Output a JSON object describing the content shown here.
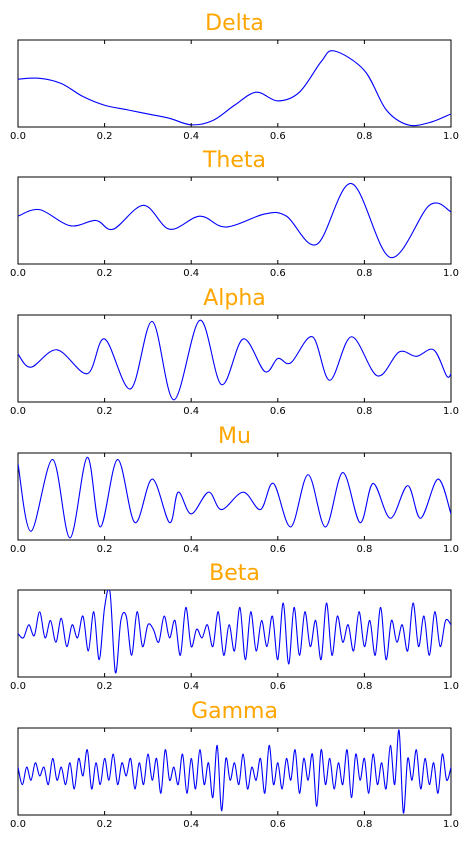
{
  "chart_data": [
    {
      "type": "line",
      "title": "Delta",
      "color": "#0000ff",
      "xlim": [
        0,
        1
      ],
      "ylim": [
        -1,
        1
      ],
      "xticks": [
        {
          "value": 0,
          "label": "0.0"
        },
        {
          "value": 0.2,
          "label": "0.2"
        },
        {
          "value": 0.4,
          "label": "0.4"
        },
        {
          "value": 0.6,
          "label": "0.6"
        },
        {
          "value": 0.8,
          "label": "0.8"
        },
        {
          "value": 1,
          "label": "1.0"
        }
      ],
      "x": [
        0,
        0.05,
        0.1,
        0.15,
        0.2,
        0.25,
        0.3,
        0.35,
        0.4,
        0.45,
        0.5,
        0.55,
        0.6,
        0.65,
        0.7,
        0.73,
        0.8,
        0.85,
        0.9,
        0.95,
        1
      ],
      "values": [
        0.1,
        0.12,
        0.0,
        -0.3,
        -0.5,
        -0.6,
        -0.7,
        -0.8,
        -0.95,
        -0.85,
        -0.5,
        -0.2,
        -0.4,
        -0.2,
        0.5,
        0.75,
        0.3,
        -0.6,
        -0.95,
        -0.9,
        -0.7
      ]
    },
    {
      "type": "line",
      "title": "Theta",
      "color": "#0000ff",
      "xlim": [
        0,
        1
      ],
      "ylim": [
        -1,
        1
      ],
      "xticks": [
        {
          "value": 0,
          "label": "0.0"
        },
        {
          "value": 0.2,
          "label": "0.2"
        },
        {
          "value": 0.4,
          "label": "0.4"
        },
        {
          "value": 0.6,
          "label": "0.6"
        },
        {
          "value": 0.8,
          "label": "0.8"
        },
        {
          "value": 1,
          "label": "1.0"
        }
      ],
      "x": [
        0,
        0.05,
        0.12,
        0.18,
        0.22,
        0.29,
        0.35,
        0.42,
        0.48,
        0.57,
        0.62,
        0.69,
        0.77,
        0.86,
        0.95,
        1
      ],
      "values": [
        0.1,
        0.25,
        -0.12,
        0.0,
        -0.2,
        0.35,
        -0.2,
        0.1,
        -0.15,
        0.15,
        0.1,
        -0.55,
        0.85,
        -0.85,
        0.35,
        0.2
      ]
    },
    {
      "type": "line",
      "title": "Alpha",
      "color": "#0000ff",
      "xlim": [
        0,
        1
      ],
      "ylim": [
        -1,
        1
      ],
      "xticks": [
        {
          "value": 0,
          "label": "0.0"
        },
        {
          "value": 0.2,
          "label": "0.2"
        },
        {
          "value": 0.4,
          "label": "0.4"
        },
        {
          "value": 0.6,
          "label": "0.6"
        },
        {
          "value": 0.8,
          "label": "0.8"
        },
        {
          "value": 1,
          "label": "1.0"
        }
      ],
      "x": [
        0,
        0.03,
        0.09,
        0.16,
        0.2,
        0.26,
        0.31,
        0.36,
        0.42,
        0.47,
        0.52,
        0.57,
        0.6,
        0.63,
        0.68,
        0.72,
        0.77,
        0.83,
        0.88,
        0.92,
        0.96,
        0.99,
        1
      ],
      "values": [
        0.1,
        -0.2,
        0.2,
        -0.35,
        0.45,
        -0.7,
        0.85,
        -0.95,
        0.88,
        -0.6,
        0.45,
        -0.3,
        0.0,
        -0.1,
        0.5,
        -0.5,
        0.5,
        -0.4,
        0.15,
        0.05,
        0.2,
        -0.4,
        -0.35
      ]
    },
    {
      "type": "line",
      "title": "Mu",
      "color": "#0000ff",
      "xlim": [
        0,
        1
      ],
      "ylim": [
        -1,
        1
      ],
      "xticks": [
        {
          "value": 0,
          "label": "0.0"
        },
        {
          "value": 0.2,
          "label": "0.2"
        },
        {
          "value": 0.4,
          "label": "0.4"
        },
        {
          "value": 0.6,
          "label": "0.6"
        },
        {
          "value": 0.8,
          "label": "0.8"
        },
        {
          "value": 1,
          "label": "1.0"
        }
      ],
      "x": [
        0,
        0.03,
        0.08,
        0.12,
        0.16,
        0.19,
        0.23,
        0.27,
        0.31,
        0.35,
        0.37,
        0.4,
        0.44,
        0.47,
        0.52,
        0.56,
        0.59,
        0.63,
        0.67,
        0.71,
        0.75,
        0.79,
        0.82,
        0.86,
        0.9,
        0.93,
        0.97,
        1
      ],
      "values": [
        0.75,
        -0.8,
        0.85,
        -0.95,
        0.9,
        -0.7,
        0.85,
        -0.6,
        0.4,
        -0.6,
        0.1,
        -0.4,
        0.1,
        -0.3,
        0.1,
        -0.3,
        0.3,
        -0.7,
        0.5,
        -0.7,
        0.55,
        -0.6,
        0.3,
        -0.5,
        0.25,
        -0.5,
        0.4,
        -0.4
      ]
    },
    {
      "type": "line",
      "title": "Beta",
      "color": "#0000ff",
      "xlim": [
        0,
        1
      ],
      "ylim": [
        -1,
        1
      ],
      "xticks": [
        {
          "value": 0,
          "label": "0.0"
        },
        {
          "value": 0.2,
          "label": "0.2"
        },
        {
          "value": 0.4,
          "label": "0.4"
        },
        {
          "value": 0.6,
          "label": "0.6"
        },
        {
          "value": 0.8,
          "label": "0.8"
        },
        {
          "value": 1,
          "label": "1.0"
        }
      ],
      "x": [
        0,
        0.0125,
        0.025,
        0.0375,
        0.05,
        0.0625,
        0.075,
        0.0875,
        0.1,
        0.1125,
        0.125,
        0.1375,
        0.15,
        0.1625,
        0.175,
        0.1875,
        0.2,
        0.2125,
        0.225,
        0.2375,
        0.25,
        0.2625,
        0.275,
        0.2875,
        0.3,
        0.3125,
        0.325,
        0.3375,
        0.35,
        0.3625,
        0.375,
        0.3875,
        0.4,
        0.4125,
        0.425,
        0.4375,
        0.45,
        0.4625,
        0.475,
        0.4875,
        0.5,
        0.5125,
        0.525,
        0.5375,
        0.55,
        0.5625,
        0.575,
        0.5875,
        0.6,
        0.6125,
        0.625,
        0.6375,
        0.65,
        0.6625,
        0.675,
        0.6875,
        0.7,
        0.7125,
        0.725,
        0.7375,
        0.75,
        0.7625,
        0.775,
        0.7875,
        0.8,
        0.8125,
        0.825,
        0.8375,
        0.85,
        0.8625,
        0.875,
        0.8875,
        0.9,
        0.9125,
        0.925,
        0.9375,
        0.95,
        0.9625,
        0.975,
        0.9875,
        1
      ],
      "values": [
        0.0,
        -0.1,
        0.2,
        -0.05,
        0.5,
        -0.1,
        0.3,
        -0.2,
        0.35,
        -0.3,
        0.2,
        -0.1,
        0.4,
        -0.4,
        0.5,
        -0.6,
        0.6,
        0.95,
        -0.9,
        0.3,
        0.4,
        -0.5,
        0.5,
        -0.3,
        0.2,
        0.1,
        -0.2,
        0.4,
        -0.1,
        0.3,
        -0.5,
        0.6,
        -0.3,
        0.1,
        -0.1,
        0.2,
        -0.3,
        0.5,
        -0.5,
        0.2,
        -0.4,
        0.6,
        -0.6,
        0.5,
        -0.4,
        0.3,
        -0.3,
        0.4,
        -0.6,
        0.7,
        -0.7,
        0.6,
        -0.5,
        0.5,
        -0.3,
        0.3,
        -0.6,
        0.7,
        -0.5,
        0.4,
        -0.2,
        0.2,
        -0.4,
        0.5,
        -0.3,
        0.3,
        -0.5,
        0.6,
        -0.6,
        0.3,
        -0.2,
        0.2,
        -0.4,
        0.7,
        -0.3,
        0.4,
        -0.5,
        0.5,
        -0.3,
        0.3,
        0.2
      ]
    },
    {
      "type": "line",
      "title": "Gamma",
      "color": "#0000ff",
      "xlim": [
        0,
        1
      ],
      "ylim": [
        -1,
        1
      ],
      "xticks": [
        {
          "value": 0,
          "label": "0.0"
        },
        {
          "value": 0.2,
          "label": "0.2"
        },
        {
          "value": 0.4,
          "label": "0.4"
        },
        {
          "value": 0.6,
          "label": "0.6"
        },
        {
          "value": 0.8,
          "label": "0.8"
        },
        {
          "value": 1,
          "label": "1.0"
        }
      ],
      "x": [
        0,
        0.01,
        0.02,
        0.03,
        0.04,
        0.05,
        0.06,
        0.07,
        0.08,
        0.09,
        0.1,
        0.11,
        0.12,
        0.13,
        0.14,
        0.15,
        0.16,
        0.17,
        0.18,
        0.19,
        0.2,
        0.21,
        0.22,
        0.23,
        0.24,
        0.25,
        0.26,
        0.27,
        0.28,
        0.29,
        0.3,
        0.31,
        0.32,
        0.33,
        0.34,
        0.35,
        0.36,
        0.37,
        0.38,
        0.39,
        0.4,
        0.41,
        0.42,
        0.43,
        0.44,
        0.45,
        0.46,
        0.47,
        0.48,
        0.49,
        0.5,
        0.51,
        0.52,
        0.53,
        0.54,
        0.55,
        0.56,
        0.57,
        0.58,
        0.59,
        0.6,
        0.61,
        0.62,
        0.63,
        0.64,
        0.65,
        0.66,
        0.67,
        0.68,
        0.69,
        0.7,
        0.71,
        0.72,
        0.73,
        0.74,
        0.75,
        0.76,
        0.77,
        0.78,
        0.79,
        0.8,
        0.81,
        0.82,
        0.83,
        0.84,
        0.85,
        0.86,
        0.87,
        0.88,
        0.89,
        0.9,
        0.91,
        0.92,
        0.93,
        0.94,
        0.95,
        0.96,
        0.97,
        0.98,
        0.99,
        1
      ],
      "values": [
        0.1,
        -0.3,
        0.1,
        -0.2,
        0.2,
        -0.1,
        0.1,
        -0.3,
        0.3,
        -0.2,
        0.1,
        -0.3,
        0.2,
        -0.4,
        0.3,
        -0.1,
        0.5,
        -0.4,
        0.2,
        -0.3,
        0.3,
        -0.2,
        0.4,
        -0.3,
        0.2,
        -0.1,
        0.3,
        -0.4,
        0.2,
        -0.3,
        0.4,
        -0.2,
        0.3,
        -0.5,
        0.5,
        -0.2,
        0.1,
        -0.3,
        0.4,
        -0.5,
        0.3,
        -0.4,
        0.5,
        -0.3,
        0.2,
        -0.6,
        0.6,
        -0.9,
        0.3,
        -0.2,
        0.2,
        -0.3,
        0.4,
        -0.4,
        0.1,
        -0.2,
        0.3,
        -0.5,
        0.6,
        -0.3,
        0.2,
        -0.4,
        0.3,
        -0.2,
        0.5,
        -0.5,
        0.3,
        -0.2,
        0.4,
        -0.8,
        0.5,
        -0.3,
        0.3,
        -0.4,
        0.2,
        -0.3,
        0.5,
        -0.6,
        0.4,
        -0.2,
        0.3,
        -0.5,
        0.4,
        -0.3,
        0.2,
        -0.4,
        0.6,
        -0.3,
        0.95,
        -0.95,
        0.3,
        -0.2,
        0.5,
        -0.4,
        0.3,
        -0.3,
        0.2,
        -0.5,
        0.4,
        -0.2,
        0.1
      ]
    }
  ]
}
